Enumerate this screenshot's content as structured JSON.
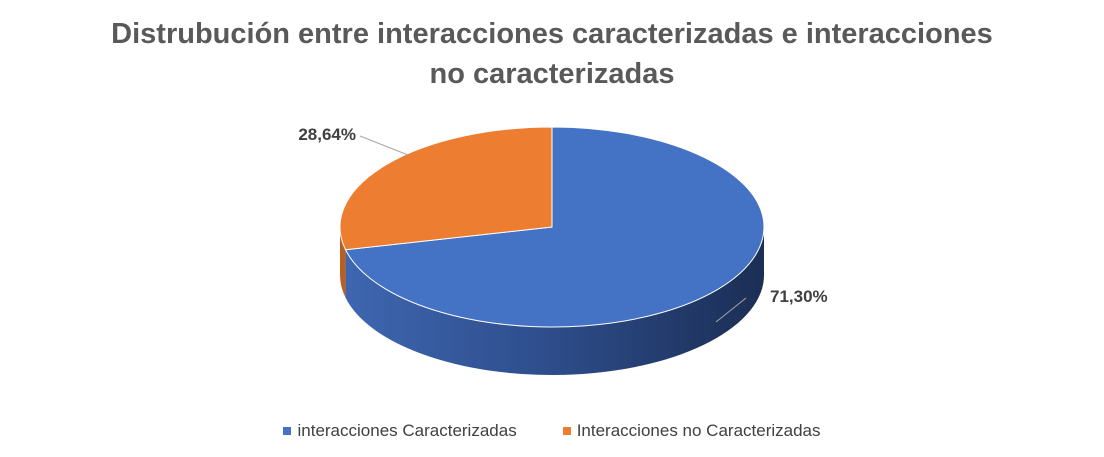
{
  "chart_data": {
    "type": "pie",
    "title_lines": [
      "Distrubución entre interacciones caracterizadas e interacciones",
      "no caracterizadas"
    ],
    "slices": [
      {
        "label": "interacciones Caracterizadas",
        "value": 71.3,
        "display": "71,30%",
        "color": "#4472C4"
      },
      {
        "label": "Interacciones no Caracterizadas",
        "value": 28.64,
        "display": "28,64%",
        "color": "#ED7D31"
      }
    ],
    "legend_position": "bottom"
  }
}
